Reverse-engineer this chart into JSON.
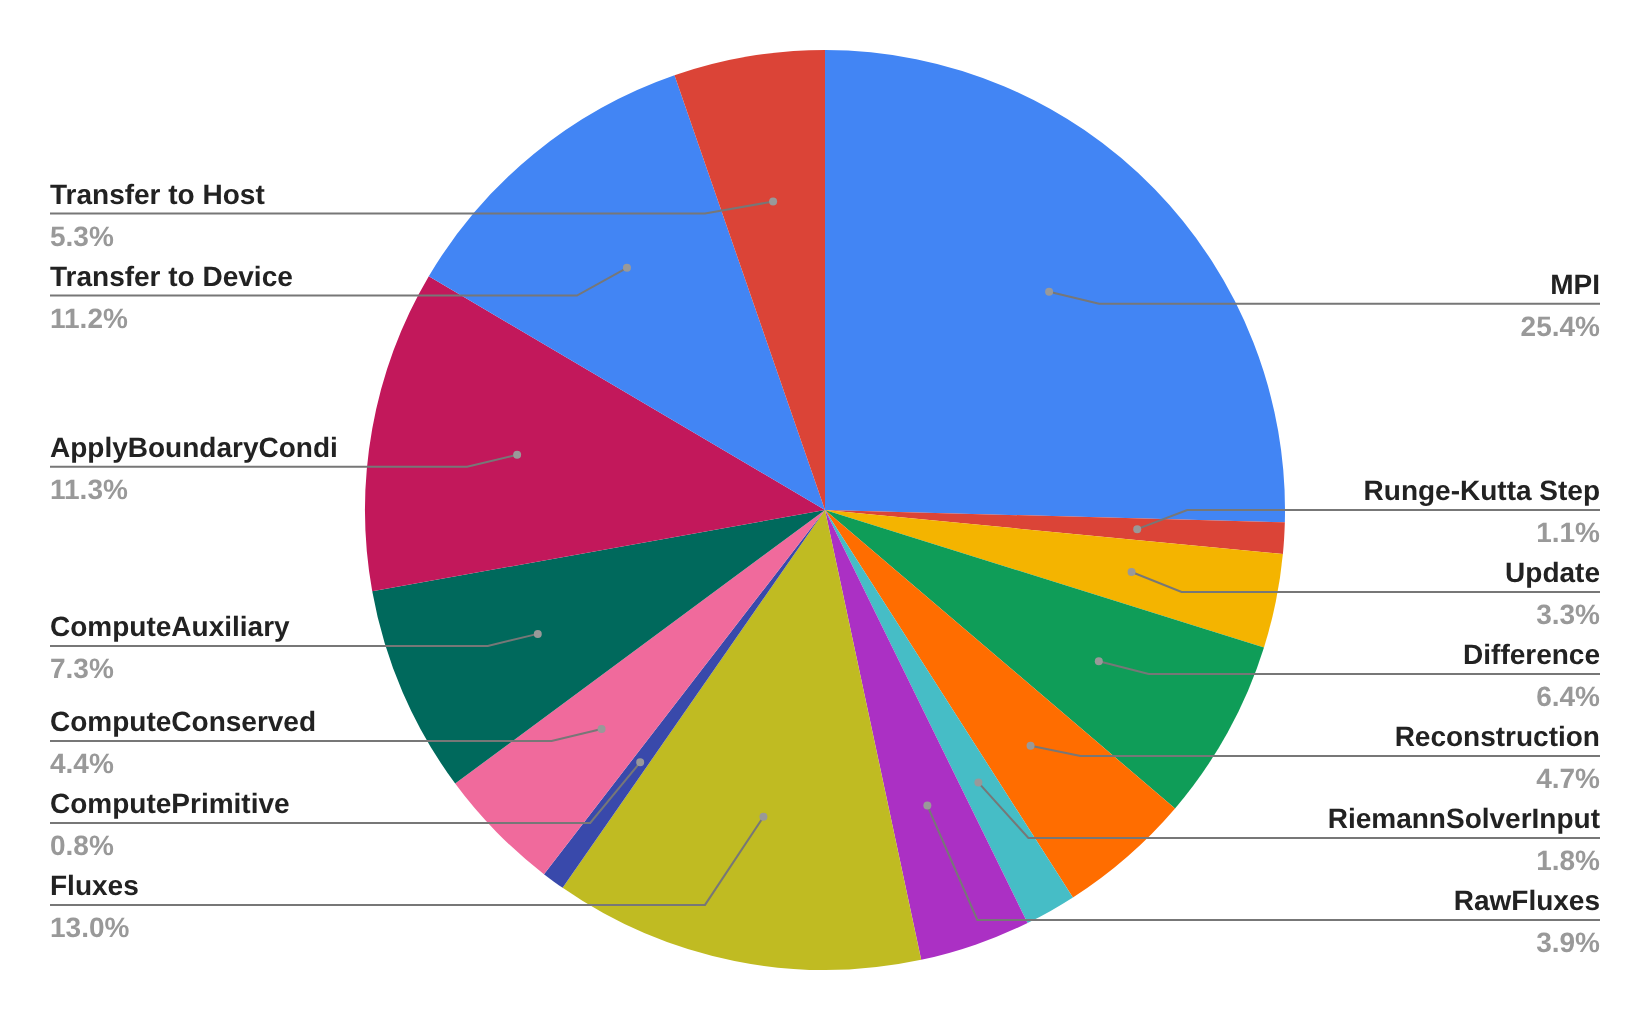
{
  "chart_data": {
    "type": "pie",
    "categories": [
      "MPI",
      "Runge-Kutta Step",
      "Update",
      "Difference",
      "Reconstruction",
      "RiemannSolverInput",
      "RawFluxes",
      "Fluxes",
      "ComputePrimitive",
      "ComputeConserved",
      "ComputeAuxiliary",
      "ApplyBoundaryCondi",
      "Transfer to Device",
      "Transfer to Host"
    ],
    "values": [
      25.4,
      1.1,
      3.3,
      6.4,
      4.7,
      1.8,
      3.9,
      13.0,
      0.8,
      4.4,
      7.3,
      11.3,
      11.2,
      5.3
    ],
    "value_labels": [
      "25.4%",
      "1.1%",
      "3.3%",
      "6.4%",
      "4.7%",
      "1.8%",
      "3.9%",
      "13.0%",
      "0.8%",
      "4.4%",
      "7.3%",
      "11.3%",
      "11.2%",
      "5.3%"
    ],
    "colors": [
      "#4285f4",
      "#db4437",
      "#f4b400",
      "#0f9d58",
      "#ff6d00",
      "#46bdc6",
      "#ab30c4",
      "#c0bb22",
      "#3949ab",
      "#f06a9c",
      "#00695c",
      "#c2185b",
      "#4285f4",
      "#db4437"
    ],
    "legend": false
  }
}
